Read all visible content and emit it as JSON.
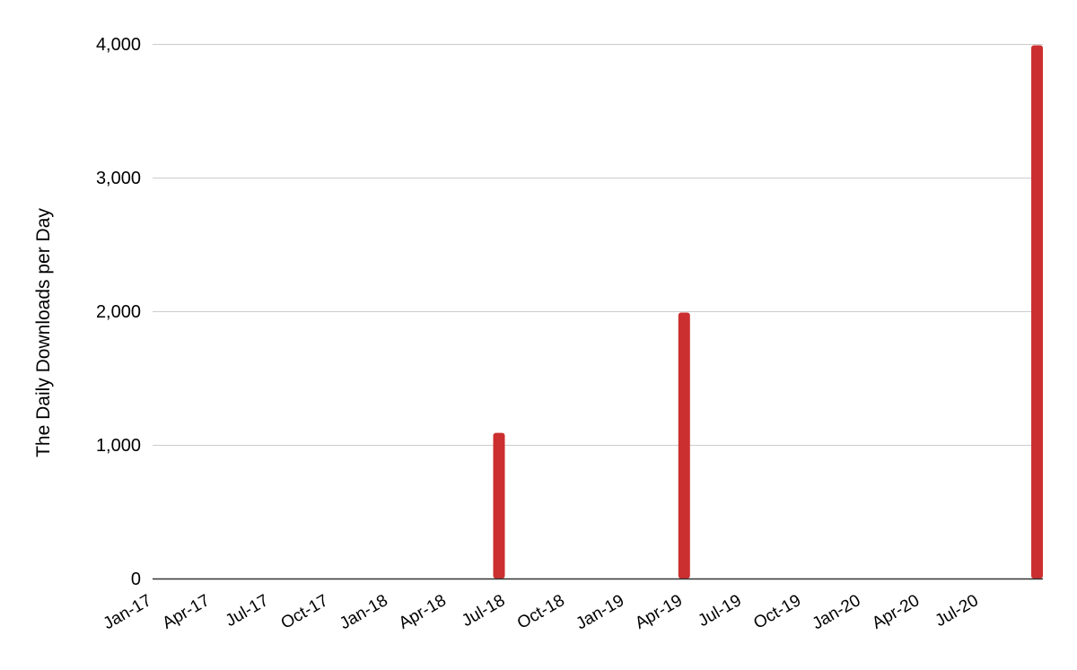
{
  "chart_data": {
    "type": "bar",
    "title": "",
    "xlabel": "",
    "ylabel": "The Daily Downloads per Day",
    "ylim": [
      0,
      4000
    ],
    "xlim": [
      "2017-01-01",
      "2020-10-07"
    ],
    "y_ticks": [
      0,
      1000,
      2000,
      3000,
      4000
    ],
    "y_tick_labels": [
      "0",
      "1,000",
      "2,000",
      "3,000",
      "4,000"
    ],
    "x_ticks": [
      {
        "date": "2017-01-01",
        "label": "Jan-17"
      },
      {
        "date": "2017-04-01",
        "label": "Apr-17"
      },
      {
        "date": "2017-07-01",
        "label": "Jul-17"
      },
      {
        "date": "2017-10-01",
        "label": "Oct-17"
      },
      {
        "date": "2018-01-01",
        "label": "Jan-18"
      },
      {
        "date": "2018-04-01",
        "label": "Apr-18"
      },
      {
        "date": "2018-07-01",
        "label": "Jul-18"
      },
      {
        "date": "2018-10-01",
        "label": "Oct-18"
      },
      {
        "date": "2019-01-01",
        "label": "Jan-19"
      },
      {
        "date": "2019-04-01",
        "label": "Apr-19"
      },
      {
        "date": "2019-07-01",
        "label": "Jul-19"
      },
      {
        "date": "2019-10-01",
        "label": "Oct-19"
      },
      {
        "date": "2020-01-01",
        "label": "Jan-20"
      },
      {
        "date": "2020-04-01",
        "label": "Apr-20"
      },
      {
        "date": "2020-07-01",
        "label": "Jul-20"
      }
    ],
    "points": [
      {
        "date": "2018-06-20",
        "value": 1090
      },
      {
        "date": "2019-04-02",
        "value": 1990
      },
      {
        "date": "2020-09-28",
        "value": 3990
      }
    ],
    "grid": true,
    "legend": "none",
    "bar_color": "#cc2f2f",
    "grid_color": "#cccccc",
    "axis_color": "#333333"
  }
}
